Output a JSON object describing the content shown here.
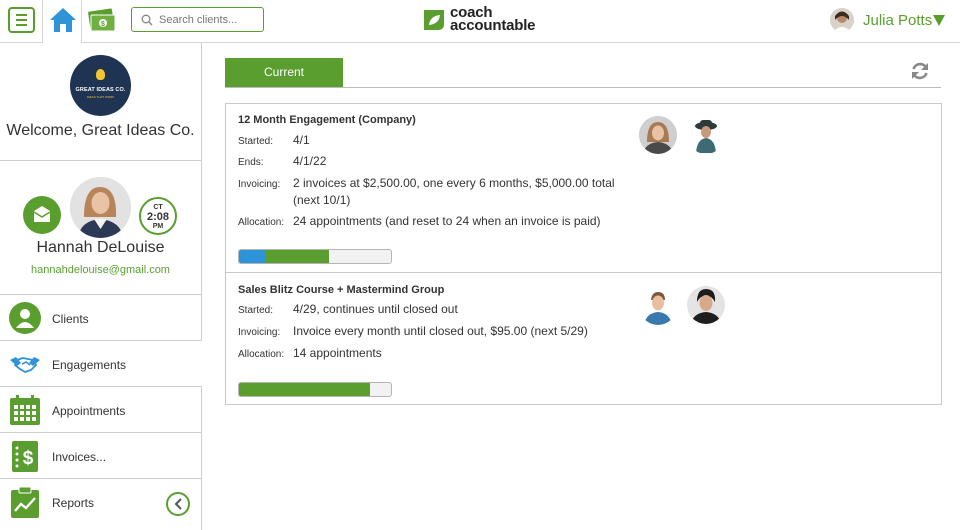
{
  "search": {
    "placeholder": "Search clients..."
  },
  "brand": {
    "line1": "coach",
    "line2": "accountable"
  },
  "user": {
    "name": "Julia Potts"
  },
  "company": {
    "logo_text": "GREAT IDEAS CO.",
    "logo_sub": "IDEAS THAT WORK",
    "welcome": "Welcome, Great Ideas Co."
  },
  "coach": {
    "name": "Hannah DeLouise",
    "email": "hannahdelouise@gmail.com",
    "clock": {
      "tz": "CT",
      "time": "2:08",
      "ampm": "PM"
    }
  },
  "nav": {
    "clients": "Clients",
    "engagements": "Engagements",
    "appointments": "Appointments",
    "invoices": "Invoices...",
    "reports": "Reports"
  },
  "tabs": {
    "current": "Current"
  },
  "engagements": [
    {
      "title": "12 Month Engagement (Company)",
      "rows": [
        {
          "label": "Started:",
          "value": "4/1"
        },
        {
          "label": "Ends:",
          "value": "4/1/22"
        },
        {
          "label": "Invoicing:",
          "value": "2 invoices at $2,500.00, one every 6 months, $5,000.00 total (next 10/1)"
        },
        {
          "label": "Allocation:",
          "value": "24 appointments (and reset to 24 when an invoice is paid)"
        }
      ],
      "progress": {
        "blue_fraction": 0.17,
        "green_fraction": 0.42
      }
    },
    {
      "title": "Sales Blitz Course + Mastermind Group",
      "rows": [
        {
          "label": "Started:",
          "value": "4/29, continues until closed out"
        },
        {
          "label": "Invoicing:",
          "value": "Invoice every month until closed out, $95.00 (next 5/29)"
        },
        {
          "label": "Allocation:",
          "value": "14 appointments"
        }
      ],
      "progress": {
        "blue_fraction": 0,
        "green_fraction": 0.86
      }
    }
  ],
  "colors": {
    "accent": "#5a9e2f",
    "progress_blue": "#2f93d8",
    "progress_green": "#5a9e2f"
  }
}
